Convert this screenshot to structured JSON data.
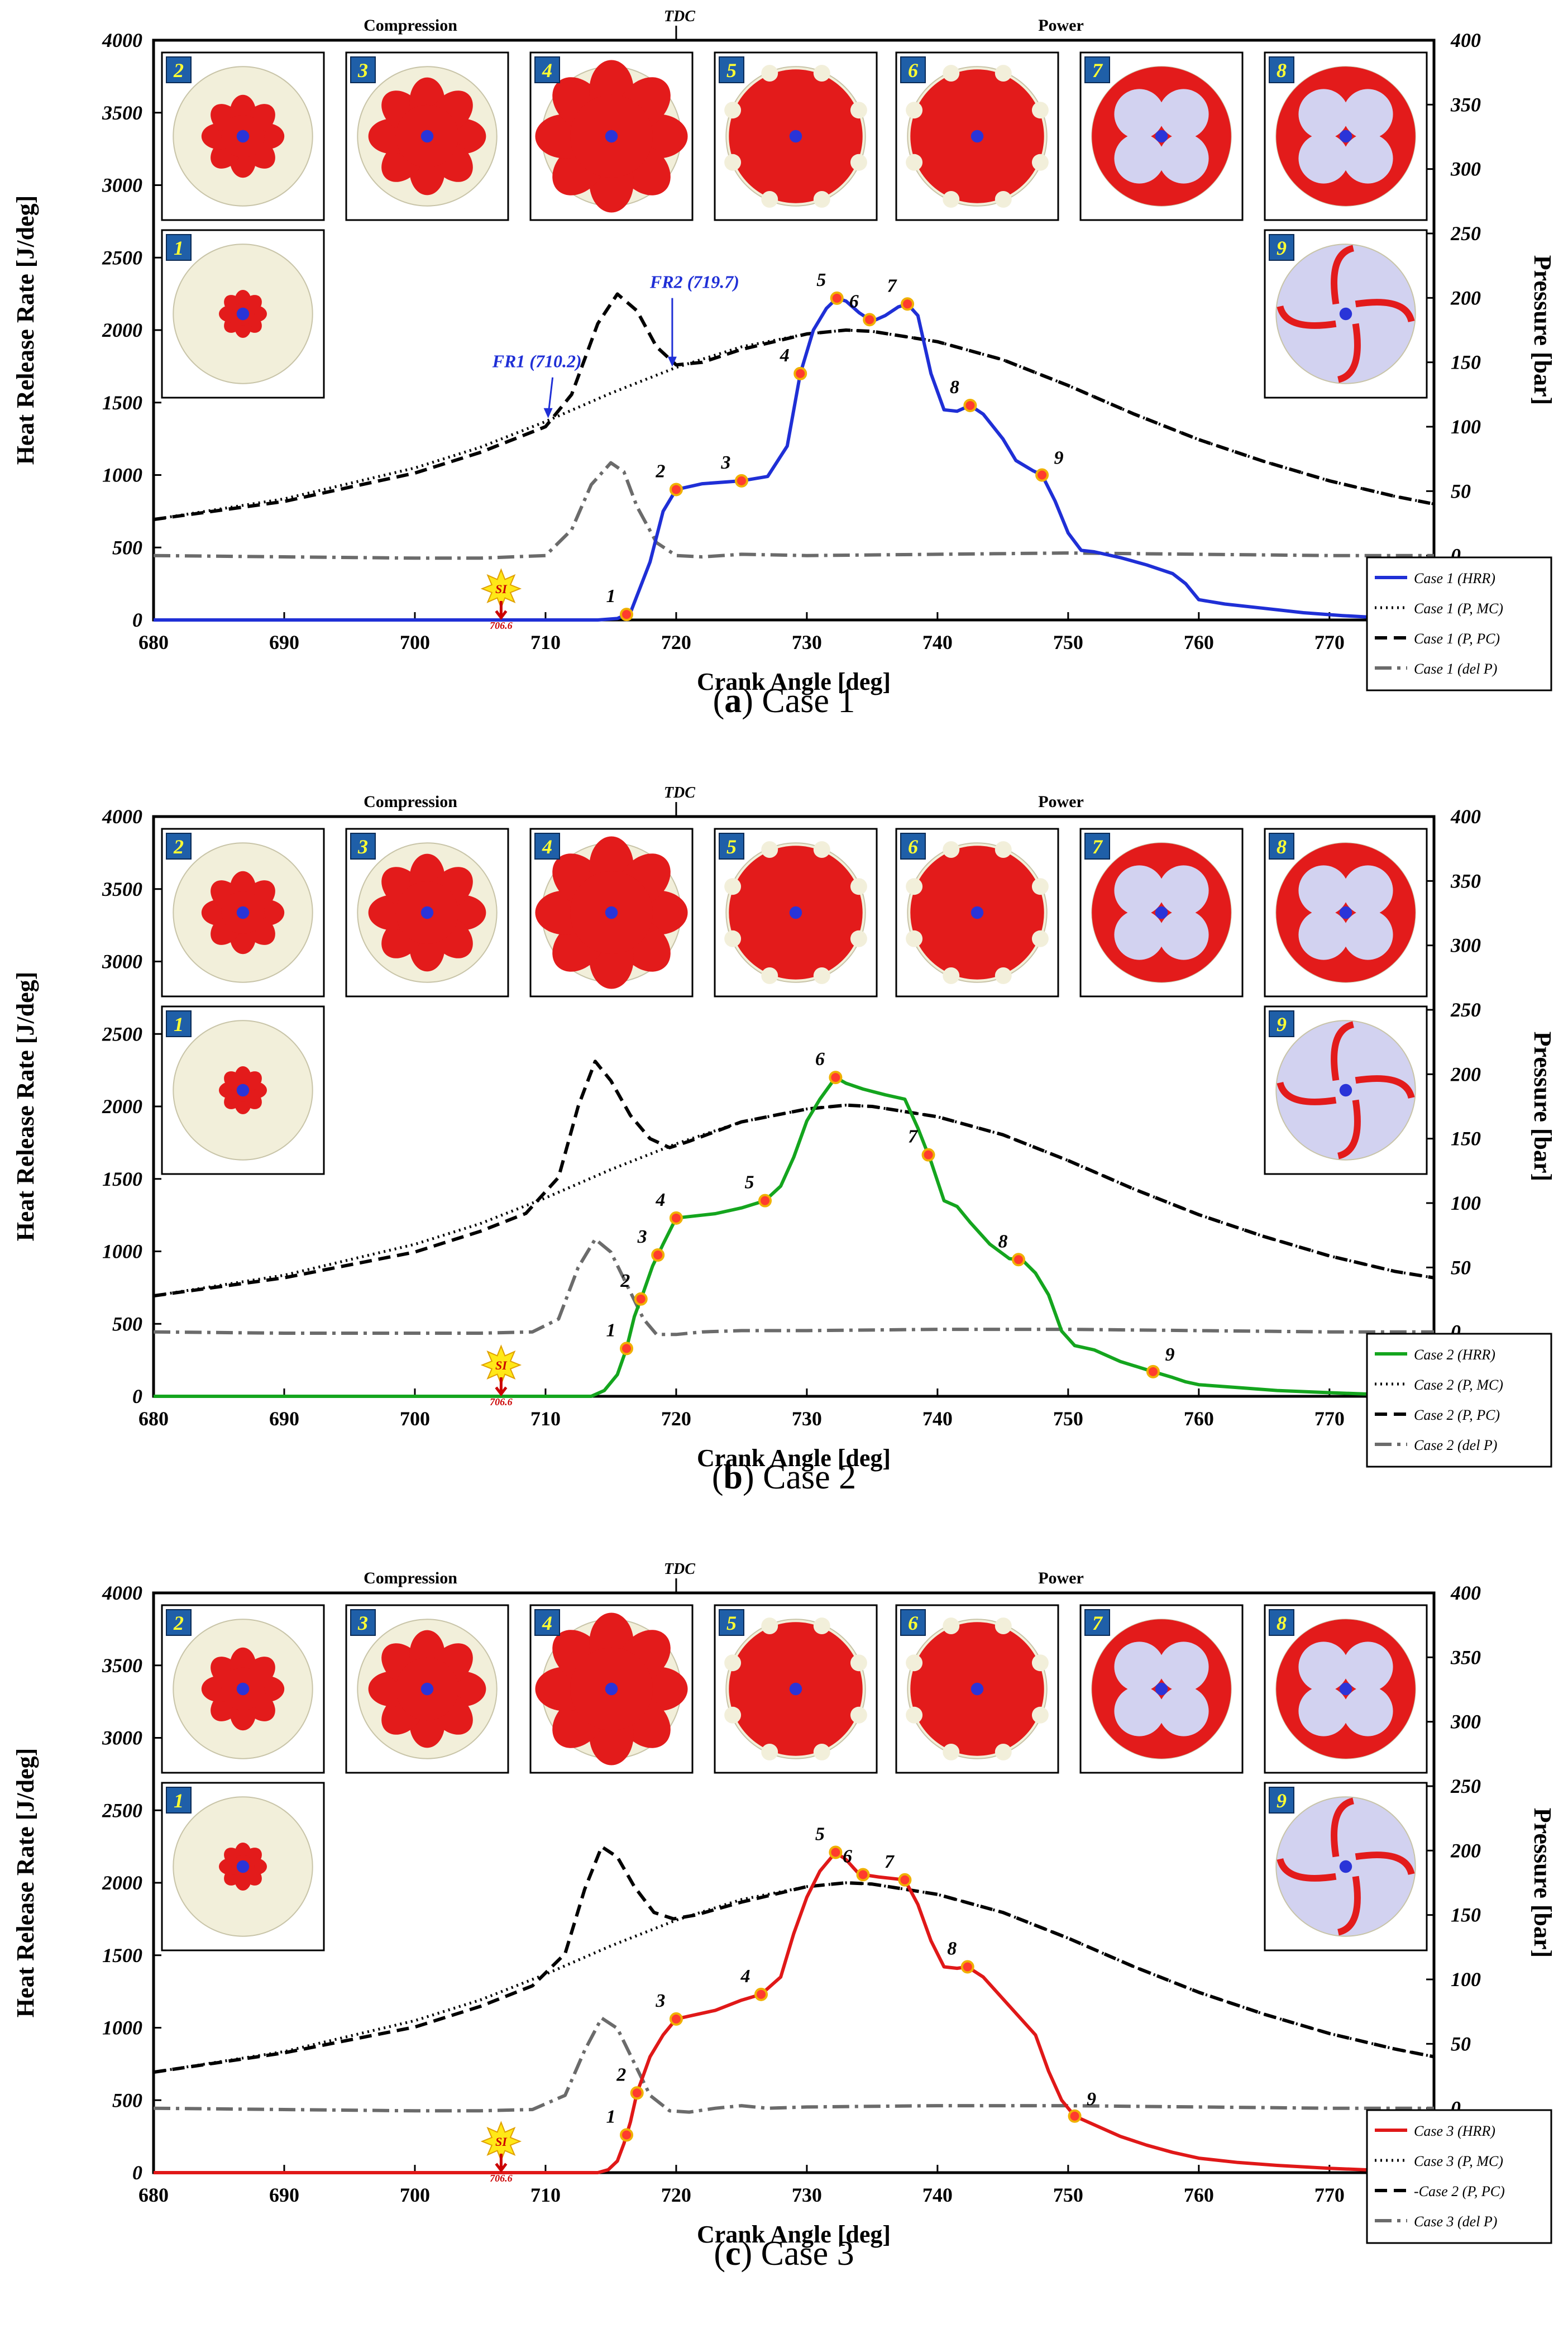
{
  "figure": {
    "x_label": "Crank Angle [deg]",
    "y_left_label": "Heat Release Rate [J/deg]",
    "y_right_label": "Pressure [bar]",
    "compression_label": "Compression",
    "tdc_label": "TDC",
    "power_label": "Power",
    "si_label": "SI",
    "si_value": "706.6"
  },
  "chart_data": [
    {
      "type": "line",
      "panel": "a",
      "caption_letter": "a",
      "caption_text": "Case 1",
      "hrr_color": "#1f2fd6",
      "x_ticks": [
        680,
        690,
        700,
        710,
        720,
        730,
        740,
        750,
        760,
        770
      ],
      "xlim": [
        680,
        778
      ],
      "ylim_left": [
        0,
        4000
      ],
      "y_left_ticks": [
        0,
        500,
        1000,
        1500,
        2000,
        2500,
        3000,
        3500,
        4000
      ],
      "ylim_right": [
        -50,
        400
      ],
      "y_right_ticks": [
        0,
        50,
        100,
        150,
        200,
        250,
        300,
        350,
        400
      ],
      "legend": [
        "Case 1 (HRR)",
        "Case 1 (P, MC)",
        "Case 1 (P, PC)",
        "Case 1 (del P)"
      ],
      "annotations": [
        {
          "text": "FR1 (710.2)",
          "x": 710.2
        },
        {
          "text": "FR2 (719.7)",
          "x": 719.7
        }
      ],
      "series": [
        {
          "name": "HRR",
          "axis": "left",
          "style": "solid",
          "x": [
            680,
            714,
            715.5,
            716.5,
            718,
            719,
            720,
            722,
            725,
            727,
            728.5,
            729.5,
            730.5,
            731.5,
            732.3,
            733,
            734,
            735,
            736,
            737,
            737.7,
            738.5,
            739.5,
            740.5,
            741.5,
            742.5,
            743.5,
            745,
            746,
            747.3,
            748,
            749,
            750,
            751,
            752,
            754,
            756,
            758,
            759,
            760,
            762,
            765,
            768,
            771,
            774,
            778
          ],
          "y": [
            0,
            0,
            10,
            50,
            400,
            750,
            900,
            940,
            960,
            990,
            1200,
            1700,
            2000,
            2150,
            2220,
            2200,
            2120,
            2060,
            2100,
            2160,
            2180,
            2100,
            1700,
            1450,
            1440,
            1480,
            1420,
            1250,
            1100,
            1030,
            1000,
            820,
            600,
            480,
            470,
            430,
            380,
            320,
            250,
            140,
            110,
            80,
            50,
            30,
            15,
            5
          ]
        },
        {
          "name": "P, MC",
          "axis": "right",
          "style": "dotted",
          "x": [
            680,
            690,
            700,
            705,
            710,
            715,
            720,
            725,
            730,
            733,
            735,
            740,
            745,
            750,
            755,
            760,
            765,
            770,
            775,
            778
          ],
          "y": [
            28,
            44,
            68,
            84,
            104,
            126,
            146,
            162,
            172,
            175,
            174,
            166,
            152,
            132,
            110,
            90,
            73,
            58,
            46,
            40
          ]
        },
        {
          "name": "P, PC",
          "axis": "right",
          "style": "dashed",
          "x": [
            680,
            690,
            700,
            705,
            710,
            712,
            714,
            715.5,
            717,
            718.5,
            720,
            722,
            725,
            730,
            733,
            735,
            740,
            745,
            750,
            755,
            760,
            765,
            770,
            775,
            778
          ],
          "y": [
            28,
            42,
            64,
            80,
            100,
            125,
            180,
            203,
            190,
            162,
            148,
            150,
            160,
            172,
            175,
            174,
            166,
            152,
            132,
            110,
            90,
            73,
            58,
            46,
            40
          ]
        },
        {
          "name": "del P",
          "axis": "right",
          "style": "dashdot",
          "x": [
            680,
            690,
            700,
            705,
            710,
            712,
            713.5,
            715,
            716,
            717,
            718.5,
            720,
            722,
            725,
            730,
            740,
            750,
            760,
            770,
            778
          ],
          "y": [
            0,
            -1,
            -2,
            -2,
            0,
            20,
            55,
            72,
            65,
            38,
            10,
            0,
            -1,
            1,
            0,
            1,
            2,
            1,
            0,
            0
          ]
        }
      ],
      "markers": [
        {
          "label": "1",
          "x": 716.2
        },
        {
          "label": "2",
          "x": 720
        },
        {
          "label": "3",
          "x": 725
        },
        {
          "label": "4",
          "x": 729.5
        },
        {
          "label": "5",
          "x": 732.3
        },
        {
          "label": "6",
          "x": 734.8
        },
        {
          "label": "7",
          "x": 737.7
        },
        {
          "label": "8",
          "x": 742.5
        },
        {
          "label": "9",
          "x": 748
        }
      ],
      "snapshots": [
        "2",
        "3",
        "4",
        "5",
        "6",
        "7",
        "8",
        "1",
        "9"
      ]
    },
    {
      "type": "line",
      "panel": "b",
      "caption_letter": "b",
      "caption_text": "Case 2",
      "hrr_color": "#14a51e",
      "x_ticks": [
        680,
        690,
        700,
        710,
        720,
        730,
        740,
        750,
        760,
        770
      ],
      "xlim": [
        680,
        778
      ],
      "ylim_left": [
        0,
        4000
      ],
      "y_left_ticks": [
        0,
        500,
        1000,
        1500,
        2000,
        2500,
        3000,
        3500,
        4000
      ],
      "ylim_right": [
        -50,
        400
      ],
      "y_right_ticks": [
        0,
        50,
        100,
        150,
        200,
        250,
        300,
        350,
        400
      ],
      "legend": [
        "Case 2 (HRR)",
        "Case 2 (P, MC)",
        "Case 2 (P, PC)",
        "Case 2 (del P)"
      ],
      "annotations": [],
      "series": [
        {
          "name": "HRR",
          "axis": "left",
          "style": "solid",
          "x": [
            680,
            713.5,
            714.5,
            715.5,
            716.2,
            716.8,
            717.5,
            718.2,
            719,
            720,
            721,
            723,
            725,
            726.8,
            728,
            729,
            730,
            731,
            732.2,
            733,
            734.3,
            736,
            737.5,
            738.5,
            739.5,
            740.5,
            741.5,
            742.5,
            744,
            745.5,
            746.5,
            747.5,
            748.5,
            749.5,
            750.5,
            752,
            754,
            756.5,
            758,
            759,
            760,
            763,
            766,
            770,
            774,
            778
          ],
          "y": [
            0,
            0,
            40,
            150,
            330,
            550,
            720,
            900,
            1050,
            1230,
            1240,
            1260,
            1300,
            1350,
            1450,
            1650,
            1900,
            2050,
            2200,
            2160,
            2120,
            2080,
            2050,
            1850,
            1620,
            1350,
            1310,
            1200,
            1050,
            950,
            940,
            850,
            700,
            450,
            350,
            320,
            240,
            170,
            130,
            100,
            80,
            60,
            40,
            25,
            12,
            5
          ]
        },
        {
          "name": "P, MC",
          "axis": "right",
          "style": "dotted",
          "x": [
            680,
            690,
            700,
            705,
            710,
            715,
            720,
            725,
            730,
            733,
            735,
            740,
            745,
            750,
            755,
            760,
            765,
            770,
            775,
            778
          ],
          "y": [
            28,
            44,
            68,
            84,
            104,
            126,
            146,
            163,
            173,
            176,
            175,
            167,
            153,
            133,
            111,
            91,
            74,
            59,
            47,
            42
          ]
        },
        {
          "name": "P, PC",
          "axis": "right",
          "style": "dashed",
          "x": [
            680,
            690,
            700,
            705,
            708.5,
            711,
            712.5,
            713.8,
            715,
            716.5,
            718,
            719.5,
            721,
            725,
            730,
            733,
            735,
            740,
            745,
            750,
            755,
            760,
            765,
            770,
            775,
            778
          ],
          "y": [
            28,
            42,
            62,
            78,
            92,
            120,
            175,
            210,
            195,
            168,
            150,
            143,
            148,
            163,
            173,
            176,
            175,
            167,
            153,
            133,
            111,
            91,
            74,
            59,
            47,
            42
          ]
        },
        {
          "name": "del P",
          "axis": "right",
          "style": "dashdot",
          "x": [
            680,
            690,
            700,
            705,
            709,
            711,
            712.5,
            713.8,
            715,
            716.3,
            717.5,
            718.5,
            720,
            722,
            725,
            730,
            740,
            750,
            760,
            770,
            778
          ],
          "y": [
            0,
            -1,
            -1,
            -1,
            0,
            10,
            50,
            72,
            62,
            35,
            10,
            -2,
            -2,
            0,
            1,
            1,
            2,
            2,
            1,
            0,
            0
          ]
        }
      ],
      "markers": [
        {
          "label": "1",
          "x": 716.2
        },
        {
          "label": "2",
          "x": 717.3
        },
        {
          "label": "3",
          "x": 718.6
        },
        {
          "label": "4",
          "x": 720
        },
        {
          "label": "5",
          "x": 726.8
        },
        {
          "label": "6",
          "x": 732.2
        },
        {
          "label": "7",
          "x": 739.3
        },
        {
          "label": "8",
          "x": 746.2
        },
        {
          "label": "9",
          "x": 756.5
        }
      ],
      "snapshots": [
        "2",
        "3",
        "4",
        "5",
        "6",
        "7",
        "8",
        "1",
        "9"
      ]
    },
    {
      "type": "line",
      "panel": "c",
      "caption_letter": "c",
      "caption_text": "Case 3",
      "hrr_color": "#e01818",
      "x_ticks": [
        680,
        690,
        700,
        710,
        720,
        730,
        740,
        750,
        760,
        770
      ],
      "xlim": [
        680,
        778
      ],
      "ylim_left": [
        0,
        4000
      ],
      "y_left_ticks": [
        0,
        500,
        1000,
        1500,
        2000,
        2500,
        3000,
        3500,
        4000
      ],
      "ylim_right": [
        -50,
        400
      ],
      "y_right_ticks": [
        0,
        50,
        100,
        150,
        200,
        250,
        300,
        350,
        400
      ],
      "legend": [
        "Case 3 (HRR)",
        "Case 3 (P, MC)",
        "-Case 2 (P, PC)",
        "Case 3 (del P)"
      ],
      "annotations": [],
      "series": [
        {
          "name": "HRR",
          "axis": "left",
          "style": "solid",
          "x": [
            680,
            714,
            714.8,
            715.5,
            716,
            716.5,
            717,
            718,
            719,
            720,
            721,
            723,
            725,
            726.5,
            728,
            729,
            730,
            731,
            732.2,
            733,
            734,
            735.5,
            737.5,
            738.5,
            739.5,
            740.5,
            741.5,
            742.3,
            743.5,
            745,
            746.5,
            747.5,
            748.5,
            749.5,
            750.5,
            752,
            754,
            756,
            758,
            760,
            763,
            766,
            770,
            774,
            778
          ],
          "y": [
            0,
            0,
            20,
            80,
            200,
            350,
            550,
            800,
            950,
            1060,
            1080,
            1120,
            1190,
            1230,
            1350,
            1650,
            1900,
            2080,
            2210,
            2160,
            2060,
            2040,
            2020,
            1850,
            1600,
            1420,
            1410,
            1420,
            1350,
            1200,
            1050,
            950,
            700,
            500,
            390,
            330,
            250,
            190,
            140,
            100,
            70,
            50,
            30,
            15,
            5
          ]
        },
        {
          "name": "P, MC",
          "axis": "right",
          "style": "dotted",
          "x": [
            680,
            690,
            700,
            705,
            710,
            715,
            720,
            725,
            730,
            733,
            735,
            740,
            745,
            750,
            755,
            760,
            765,
            770,
            775,
            778
          ],
          "y": [
            28,
            44,
            68,
            84,
            104,
            126,
            146,
            162,
            172,
            175,
            174,
            166,
            152,
            132,
            110,
            90,
            73,
            58,
            46,
            40
          ]
        },
        {
          "name": "P, PC",
          "axis": "right",
          "style": "dashed",
          "x": [
            680,
            690,
            700,
            705,
            709,
            711.5,
            713,
            714.3,
            715.5,
            716.8,
            718.3,
            719.8,
            721.5,
            725,
            730,
            733,
            735,
            740,
            745,
            750,
            755,
            760,
            765,
            770,
            775,
            778
          ],
          "y": [
            28,
            43,
            63,
            79,
            95,
            120,
            170,
            203,
            195,
            172,
            152,
            147,
            150,
            160,
            172,
            175,
            174,
            166,
            152,
            132,
            110,
            90,
            73,
            58,
            46,
            40
          ]
        },
        {
          "name": "del P",
          "axis": "right",
          "style": "dashdot",
          "x": [
            680,
            690,
            700,
            705,
            709,
            711.5,
            713,
            714.3,
            715.5,
            716.8,
            718,
            719.5,
            721,
            723,
            725,
            727,
            730,
            740,
            750,
            760,
            770,
            778
          ],
          "y": [
            0,
            -1,
            -2,
            -2,
            -1,
            10,
            45,
            70,
            62,
            35,
            10,
            -2,
            -3,
            0,
            2,
            0,
            1,
            2,
            2,
            1,
            0,
            0
          ]
        }
      ],
      "markers": [
        {
          "label": "1",
          "x": 716.2
        },
        {
          "label": "2",
          "x": 717
        },
        {
          "label": "3",
          "x": 720
        },
        {
          "label": "4",
          "x": 726.5
        },
        {
          "label": "5",
          "x": 732.2
        },
        {
          "label": "6",
          "x": 734.3
        },
        {
          "label": "7",
          "x": 737.5
        },
        {
          "label": "8",
          "x": 742.3
        },
        {
          "label": "9",
          "x": 750.5
        }
      ],
      "snapshots": [
        "2",
        "3",
        "4",
        "5",
        "6",
        "7",
        "8",
        "1",
        "9"
      ]
    }
  ]
}
